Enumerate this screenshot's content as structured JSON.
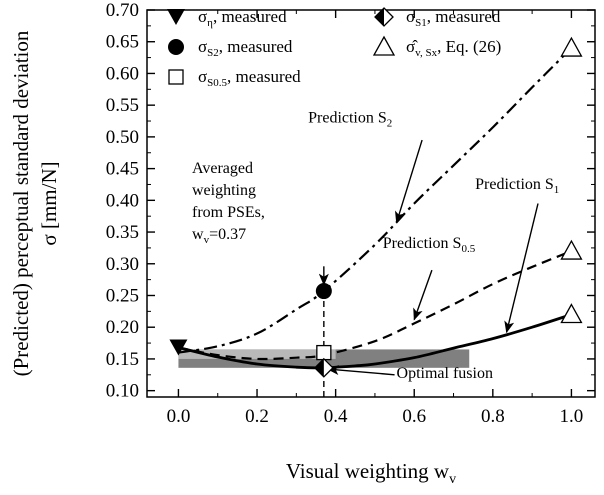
{
  "chart_data": {
    "type": "line",
    "title": "",
    "xlabel": "Visual weighting w_v",
    "ylabel": "(Predicted) perceptual standard deviation σ [mm/N]",
    "xlim": [
      -0.08,
      1.06
    ],
    "ylim": [
      0.09,
      0.7
    ],
    "xticks": [
      0.0,
      0.2,
      0.4,
      0.6,
      0.8,
      1.0
    ],
    "xtick_labels": [
      "0.0",
      "0.2",
      "0.4",
      "0.6",
      "0.8",
      "1.0"
    ],
    "yticks": [
      0.1,
      0.15,
      0.2,
      0.25,
      0.3,
      0.35,
      0.4,
      0.45,
      0.5,
      0.55,
      0.6,
      0.65,
      0.7
    ],
    "ytick_labels": [
      "0.10",
      "0.15",
      "0.20",
      "0.25",
      "0.30",
      "0.35",
      "0.40",
      "0.45",
      "0.50",
      "0.55",
      "0.60",
      "0.65",
      "0.70"
    ],
    "grid": false,
    "legend_position": "top",
    "series": [
      {
        "name": "Prediction S2",
        "style": "dash-dot",
        "x": [
          0.0,
          0.1,
          0.2,
          0.3,
          0.37,
          0.5,
          0.6,
          0.7,
          0.8,
          0.9,
          1.0
        ],
        "y": [
          0.16,
          0.17,
          0.19,
          0.228,
          0.257,
          0.33,
          0.395,
          0.455,
          0.515,
          0.578,
          0.64
        ]
      },
      {
        "name": "Prediction S0.5",
        "style": "dashed",
        "x": [
          0.0,
          0.1,
          0.2,
          0.3,
          0.37,
          0.5,
          0.6,
          0.7,
          0.8,
          0.9,
          1.0
        ],
        "y": [
          0.168,
          0.156,
          0.15,
          0.152,
          0.156,
          0.178,
          0.206,
          0.236,
          0.268,
          0.295,
          0.32
        ]
      },
      {
        "name": "Prediction S1",
        "style": "solid",
        "x": [
          0.0,
          0.1,
          0.2,
          0.3,
          0.37,
          0.45,
          0.5,
          0.6,
          0.7,
          0.8,
          0.9,
          1.0
        ],
        "y": [
          0.168,
          0.153,
          0.142,
          0.137,
          0.136,
          0.139,
          0.142,
          0.152,
          0.167,
          0.182,
          0.2,
          0.22
        ]
      }
    ],
    "vline": {
      "x": 0.37
    },
    "bands": [
      {
        "x_start": 0.0,
        "x_end": 0.74,
        "y_low": 0.136,
        "y_high": 0.165,
        "color": "#808080"
      },
      {
        "x_start": 0.0,
        "x_end": 0.4,
        "y_low": 0.15,
        "y_high": 0.165,
        "color": "#b8b8b8"
      }
    ],
    "markers": [
      {
        "name": "σ_η, measured",
        "marker": "filled-down-triangle",
        "x": 0.0,
        "y": 0.168
      },
      {
        "name": "σ_S2, measured",
        "marker": "filled-circle",
        "x": 0.37,
        "y": 0.257
      },
      {
        "name": "σ_S0.5, measured",
        "marker": "open-square",
        "x": 0.37,
        "y": 0.16
      },
      {
        "name": "σ_S1, measured",
        "marker": "half-diamond",
        "x": 0.37,
        "y": 0.136
      },
      {
        "name": "σ̂_v,Sx, Eq. (26)",
        "marker": "open-triangle",
        "x": 1.0,
        "y": 0.64
      },
      {
        "name": "σ̂_v,Sx, Eq. (26)",
        "marker": "open-triangle",
        "x": 1.0,
        "y": 0.32
      },
      {
        "name": "σ̂_v,Sx, Eq. (26)",
        "marker": "open-triangle",
        "x": 1.0,
        "y": 0.22
      }
    ],
    "legend": [
      {
        "marker": "filled-down-triangle",
        "sym": "σ",
        "sub": "η",
        "text": ", measured"
      },
      {
        "marker": "half-diamond",
        "sym": "σ",
        "sub": "S1",
        "text": ", measured"
      },
      {
        "marker": "filled-circle",
        "sym": "σ",
        "sub": "S2",
        "text": ", measured"
      },
      {
        "marker": "open-triangle",
        "sym": "σ̂",
        "sub": "v, Sx",
        "text": ", Eq. (26)"
      },
      {
        "marker": "open-square",
        "sym": "σ",
        "sub": "S0.5",
        "text": ", measured"
      }
    ],
    "annotations": [
      {
        "main": "Prediction S",
        "sub": "2",
        "label_x": 0.33,
        "label_y": 0.523,
        "arrow_from": [
          0.62,
          0.495
        ],
        "arrow_to": [
          0.555,
          0.365
        ]
      },
      {
        "main": "Prediction S",
        "sub": "0.5",
        "label_x": 0.52,
        "label_y": 0.325,
        "arrow_from": [
          0.645,
          0.29
        ],
        "arrow_to": [
          0.6,
          0.212
        ]
      },
      {
        "main": "Prediction S",
        "sub": "1",
        "label_x": 0.755,
        "label_y": 0.418,
        "arrow_from": [
          0.915,
          0.395
        ],
        "arrow_to": [
          0.835,
          0.192
        ]
      },
      {
        "main": "Optimal fusion",
        "sub": "",
        "label_x": 0.555,
        "label_y": 0.12,
        "arrow_from": [
          0.55,
          0.125
        ],
        "arrow_to": [
          0.38,
          0.134
        ]
      }
    ],
    "averaged_note": {
      "lines": [
        "Averaged",
        "weighting",
        "from PSEs,"
      ],
      "wv_prefix": "w",
      "wv_sub": "v",
      "wv_value": "=0.37",
      "arrow_from": [
        0.37,
        0.296
      ],
      "arrow_to": [
        0.37,
        0.267
      ]
    },
    "xlabel_main": "Visual weighting w",
    "xlabel_sub": "v",
    "ylabel_line1": "(Predicted) perceptual standard deviation",
    "ylabel_line2": "σ [mm/N]"
  }
}
